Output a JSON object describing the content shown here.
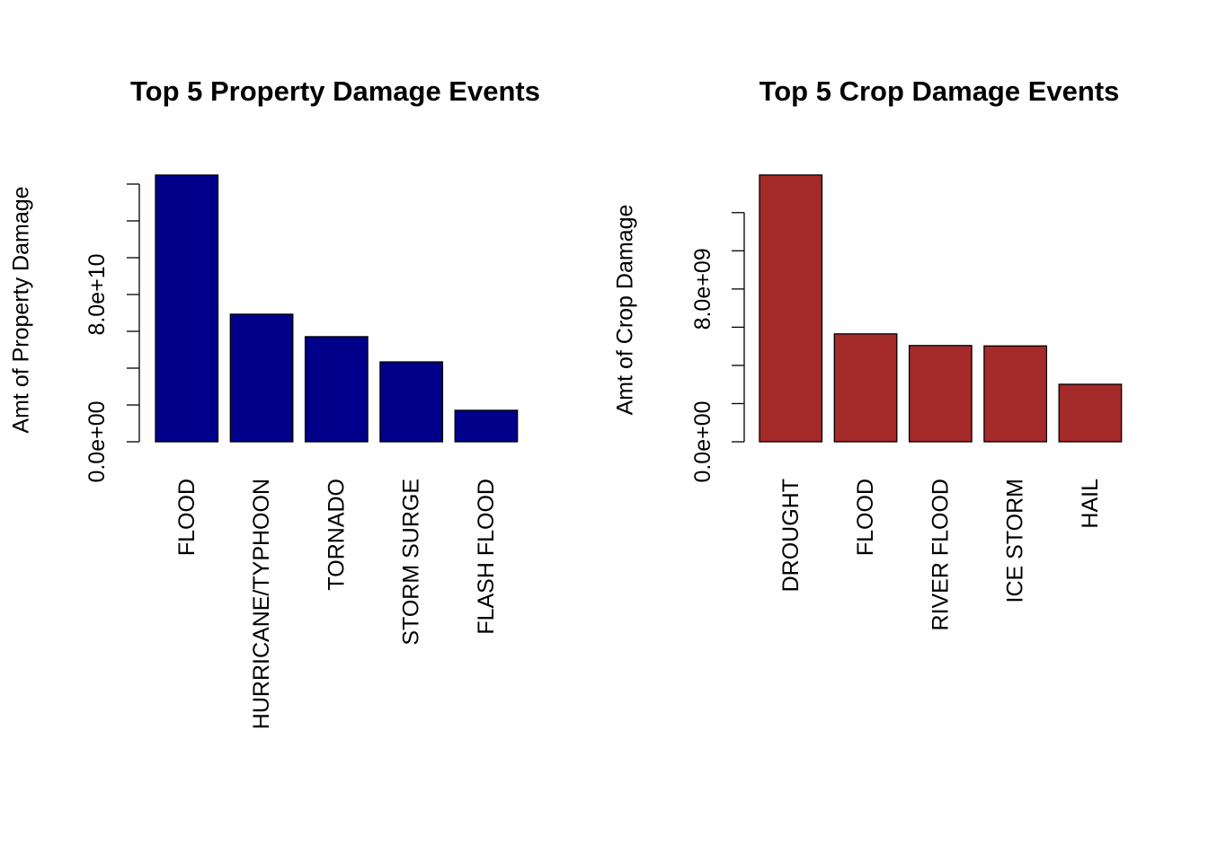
{
  "chart_data": [
    {
      "type": "bar",
      "title": "Top 5 Property Damage Events",
      "ylabel": "Amt of Property Damage",
      "categories": [
        "FLOOD",
        "HURRICANE/TYPHOON",
        "TORNADO",
        "STORM SURGE",
        "FLASH FLOOD"
      ],
      "values": [
        144900000000,
        69300000000,
        57100000000,
        43400000000,
        17100000000
      ],
      "color": "#00008b",
      "ylim": [
        0,
        150000000000
      ],
      "yticks": [
        {
          "value": 0,
          "label": "0.0e+00"
        },
        {
          "value": 80000000000,
          "label": "8.0e+10"
        }
      ],
      "minor_yticks": [
        20000000000,
        40000000000,
        60000000000,
        100000000000,
        120000000000,
        140000000000
      ]
    },
    {
      "type": "bar",
      "title": "Top 5 Crop Damage Events",
      "ylabel": "Amt of Crop Damage",
      "categories": [
        "DROUGHT",
        "FLOOD",
        "RIVER FLOOD",
        "ICE STORM",
        "HAIL"
      ],
      "values": [
        13970000000,
        5650000000,
        5040000000,
        5020000000,
        3010000000
      ],
      "color": "#a52a2a",
      "ylim": [
        0,
        15000000000
      ],
      "yticks": [
        {
          "value": 0,
          "label": "0.0e+00"
        },
        {
          "value": 8000000000,
          "label": "8.0e+09"
        }
      ],
      "minor_yticks": [
        2000000000,
        4000000000,
        6000000000,
        10000000000,
        12000000000
      ]
    }
  ]
}
